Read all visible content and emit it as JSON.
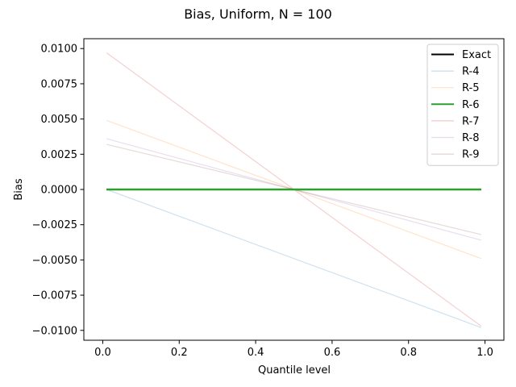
{
  "chart_data": {
    "type": "line",
    "title": "Bias, Uniform, N = 100",
    "xlabel": "Quantile level",
    "ylabel": "Bias",
    "xlim": [
      -0.0495,
      1.0495
    ],
    "ylim": [
      -0.0107,
      0.0107
    ],
    "xticks": [
      0.0,
      0.2,
      0.4,
      0.6,
      0.8,
      1.0
    ],
    "xtick_labels": [
      "0.0",
      "0.2",
      "0.4",
      "0.6",
      "0.8",
      "1.0"
    ],
    "yticks": [
      0.01,
      0.0075,
      0.005,
      0.0025,
      0.0,
      -0.0025,
      -0.005,
      -0.0075,
      -0.01
    ],
    "ytick_labels": [
      "0.0100",
      "0.0075",
      "0.0050",
      "0.0025",
      "0.0000",
      "−0.0025",
      "−0.0050",
      "−0.0075",
      "−0.0100"
    ],
    "grid": false,
    "legend_position": "top-right",
    "x": [
      0.01,
      0.99
    ],
    "series": [
      {
        "name": "Exact",
        "values": [
          0.0,
          0.0
        ],
        "color": "#000000",
        "emphasis": "strong"
      },
      {
        "name": "R-4",
        "values": [
          0.0,
          -0.0098
        ],
        "color": "#1f77b4",
        "emphasis": "faint"
      },
      {
        "name": "R-5",
        "values": [
          0.0049,
          -0.0049
        ],
        "color": "#ff7f0e",
        "emphasis": "faint"
      },
      {
        "name": "R-6",
        "values": [
          0.0,
          0.0
        ],
        "color": "#2ca02c",
        "emphasis": "strong"
      },
      {
        "name": "R-7",
        "values": [
          0.0097,
          -0.0097
        ],
        "color": "#d62728",
        "emphasis": "faint"
      },
      {
        "name": "R-8",
        "values": [
          0.0036,
          -0.0036
        ],
        "color": "#9467bd",
        "emphasis": "faint"
      },
      {
        "name": "R-9",
        "values": [
          0.0032,
          -0.0032
        ],
        "color": "#8c564b",
        "emphasis": "faint"
      }
    ]
  }
}
